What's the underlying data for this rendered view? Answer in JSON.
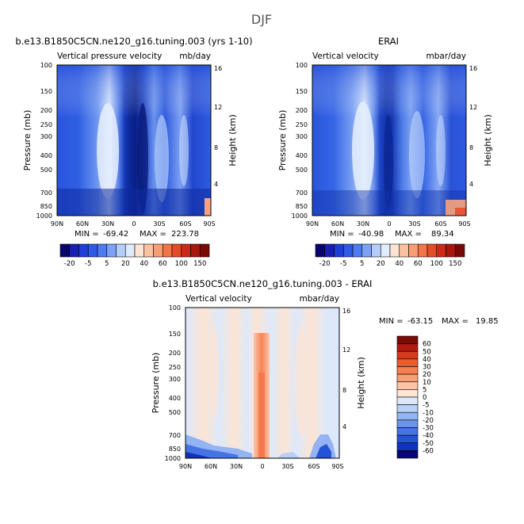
{
  "figure": {
    "title": "DJF"
  },
  "chart_data": [
    {
      "type": "heatmap",
      "title": "b.e13.B1850C5CN.ne120_g16.tuning.003 (yrs 1-10)",
      "subtitle_left": "Vertical pressure velocity",
      "subtitle_right": "mb/day",
      "ylabel": "Pressure (mb)",
      "ylabel_right": "Height (km)",
      "x_ticks": [
        "90N",
        "60N",
        "30N",
        "0",
        "30S",
        "60S",
        "90S"
      ],
      "y_ticks": [
        "100",
        "150",
        "200",
        "250",
        "300",
        "400",
        "500",
        "700",
        "850",
        "1000"
      ],
      "y_ticks_right": [
        "16",
        "12",
        "8",
        "4"
      ],
      "stats": {
        "min_label": "MIN =",
        "min": "-69.42",
        "max_label": "MAX =",
        "max": "223.78"
      },
      "colorbar": {
        "orientation": "horizontal",
        "labels": [
          "-20",
          "-5",
          "5",
          "20",
          "40",
          "60",
          "100",
          "150"
        ],
        "colors": [
          "#08066e",
          "#1a1fb4",
          "#1f3dd8",
          "#2e5ae6",
          "#4d7cf0",
          "#7ea1f5",
          "#b4cdfa",
          "#e0ecfd",
          "#fde4d3",
          "#fbc2a2",
          "#f89e74",
          "#f4744a",
          "#e74a27",
          "#cc2a17",
          "#a8160e",
          "#7a0a06"
        ]
      },
      "y_range": [
        100,
        1000
      ],
      "x_range": [
        "90N",
        "90S"
      ]
    },
    {
      "type": "heatmap",
      "title": "ERAI",
      "subtitle_left": "Vertical velocity",
      "subtitle_right": "mbar/day",
      "ylabel": "Pressure (mb)",
      "ylabel_right": "Height (km)",
      "x_ticks": [
        "90N",
        "60N",
        "30N",
        "0",
        "30S",
        "60S",
        "90S"
      ],
      "y_ticks": [
        "100",
        "150",
        "200",
        "250",
        "300",
        "400",
        "500",
        "700",
        "850",
        "1000"
      ],
      "y_ticks_right": [
        "16",
        "12",
        "8",
        "4"
      ],
      "stats": {
        "min_label": "MIN =",
        "min": "-40.98",
        "max_label": "MAX =",
        "max": "89.34"
      },
      "colorbar": {
        "orientation": "horizontal",
        "labels": [
          "-20",
          "-5",
          "5",
          "20",
          "40",
          "60",
          "100",
          "150"
        ],
        "colors": [
          "#08066e",
          "#1a1fb4",
          "#1f3dd8",
          "#2e5ae6",
          "#4d7cf0",
          "#7ea1f5",
          "#b4cdfa",
          "#e0ecfd",
          "#fde4d3",
          "#fbc2a2",
          "#f89e74",
          "#f4744a",
          "#e74a27",
          "#cc2a17",
          "#a8160e",
          "#7a0a06"
        ]
      },
      "y_range": [
        100,
        1000
      ],
      "x_range": [
        "90N",
        "90S"
      ]
    },
    {
      "type": "heatmap",
      "title": "b.e13.B1850C5CN.ne120_g16.tuning.003 - ERAI",
      "subtitle_left": "Vertical velocity",
      "subtitle_right": "mbar/day",
      "ylabel": "Pressure (mb)",
      "ylabel_right": "Height (km)",
      "x_ticks": [
        "90N",
        "60N",
        "30N",
        "0",
        "30S",
        "60S",
        "90S"
      ],
      "y_ticks": [
        "100",
        "150",
        "200",
        "250",
        "300",
        "400",
        "500",
        "700",
        "850",
        "1000"
      ],
      "y_ticks_right": [
        "16",
        "12",
        "8",
        "4"
      ],
      "stats": {
        "min_label": "MIN =",
        "min": "-63.15",
        "max_label": "MAX =",
        "max": "19.85"
      },
      "colorbar": {
        "orientation": "vertical",
        "labels": [
          "60",
          "50",
          "40",
          "30",
          "20",
          "10",
          "5",
          "0",
          "-5",
          "-10",
          "-20",
          "-30",
          "-40",
          "-50",
          "-60"
        ],
        "colors": [
          "#7a0a06",
          "#b01a10",
          "#d43a1e",
          "#ee5a30",
          "#f77e4e",
          "#fa9f74",
          "#fcc4a4",
          "#fde4d3",
          "#dde9fb",
          "#b8cff7",
          "#93b3f2",
          "#6c94ec",
          "#4674e4",
          "#2553d6",
          "#1232b8",
          "#08066e"
        ]
      },
      "y_range": [
        100,
        1000
      ],
      "x_range": [
        "90N",
        "90S"
      ]
    }
  ]
}
